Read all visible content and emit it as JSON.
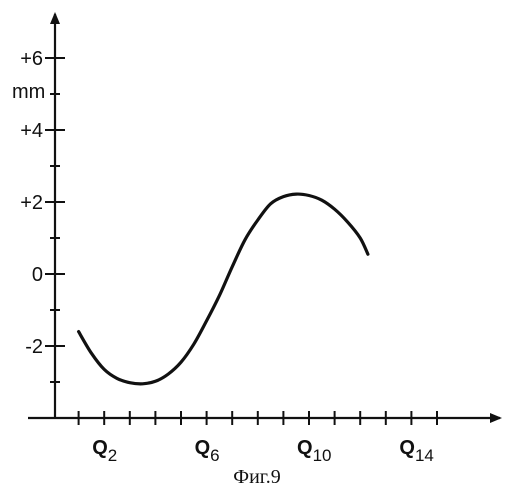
{
  "chart_data": {
    "type": "line",
    "ylabel": "mm",
    "ylim": [
      -3.8,
      7.6
    ],
    "xlim": [
      -1.6,
      17.2
    ],
    "grid": false,
    "y_ticks": [
      {
        "value": 6,
        "label": "+6"
      },
      {
        "value": 4,
        "label": "+4"
      },
      {
        "value": 2,
        "label": "+2"
      },
      {
        "value": 0,
        "label": "0"
      },
      {
        "value": -2,
        "label": "-2"
      }
    ],
    "x_ticks": [
      {
        "value": 2,
        "label": "Q",
        "sub": "2"
      },
      {
        "value": 6,
        "label": "Q",
        "sub": "6"
      },
      {
        "value": 10,
        "label": "Q",
        "sub": "10"
      },
      {
        "value": 14,
        "label": "Q",
        "sub": "14"
      }
    ],
    "x_minor_ticks": [
      1,
      2,
      3,
      4,
      5,
      6,
      7,
      8,
      9,
      10,
      11,
      12,
      13,
      14,
      15
    ],
    "y_minor_ticks": [
      -3,
      -1,
      1,
      3,
      5
    ],
    "series": [
      {
        "values": [
          [
            1.0,
            -1.6
          ],
          [
            1.5,
            -2.2
          ],
          [
            2.0,
            -2.65
          ],
          [
            2.5,
            -2.9
          ],
          [
            3.0,
            -3.02
          ],
          [
            3.5,
            -3.05
          ],
          [
            4.0,
            -2.98
          ],
          [
            4.5,
            -2.78
          ],
          [
            5.0,
            -2.45
          ],
          [
            5.5,
            -1.95
          ],
          [
            6.0,
            -1.3
          ],
          [
            6.5,
            -0.6
          ],
          [
            7.0,
            0.2
          ],
          [
            7.5,
            0.95
          ],
          [
            8.0,
            1.5
          ],
          [
            8.5,
            1.95
          ],
          [
            9.0,
            2.15
          ],
          [
            9.5,
            2.22
          ],
          [
            10.0,
            2.18
          ],
          [
            10.5,
            2.05
          ],
          [
            11.0,
            1.8
          ],
          [
            11.5,
            1.45
          ],
          [
            12.0,
            1.0
          ],
          [
            12.3,
            0.55
          ]
        ]
      }
    ]
  },
  "caption": "Фиг.9"
}
